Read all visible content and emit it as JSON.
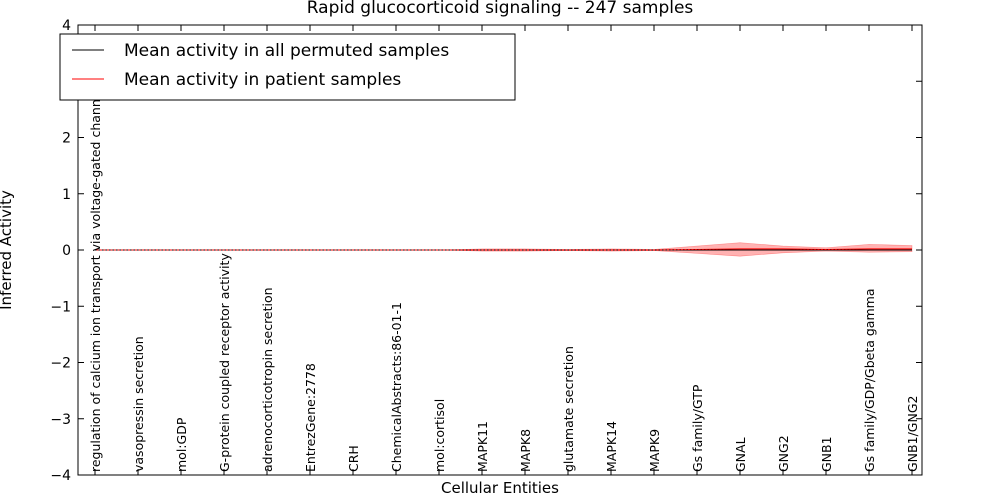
{
  "chart_data": {
    "type": "line",
    "title": "Rapid glucocorticoid signaling -- 247 samples",
    "xlabel": "Cellular Entities",
    "ylabel": "Inferred Activity",
    "ylim": [
      -4,
      4
    ],
    "yticks": [
      4,
      3,
      2,
      1,
      0,
      -1,
      -2,
      -3,
      -4
    ],
    "ytick_labels": [
      "4",
      "3",
      "2",
      "1",
      "0",
      "−1",
      "−2",
      "−3",
      "−4"
    ],
    "categories": [
      "regulation of calcium ion transport via voltage-gated channel",
      "vasopressin secretion",
      "mol:GDP",
      "G-protein coupled receptor activity",
      "adrenocorticotropin secretion",
      "EntrezGene:2778",
      "CRH",
      "ChemicalAbstracts:86-01-1",
      "mol:cortisol",
      "MAPK11",
      "MAPK8",
      "glutamate secretion",
      "MAPK14",
      "MAPK9",
      "Gs family/GTP",
      "GNAL",
      "GNG2",
      "GNB1",
      "Gs family/GDP/Gbeta gamma",
      "GNB1/GNG2"
    ],
    "series": [
      {
        "name": "Mean activity in all permuted samples",
        "color": "#000000",
        "values": [
          0,
          0,
          0,
          0,
          0,
          0,
          0,
          0,
          0,
          0,
          0,
          0,
          0,
          0,
          0,
          0,
          0,
          0,
          0,
          0
        ]
      },
      {
        "name": "Mean activity in patient samples",
        "color": "#ff0000",
        "values": [
          0,
          0,
          0,
          0,
          0,
          0,
          0,
          0,
          0,
          0,
          0,
          0,
          0,
          0,
          0.01,
          0.02,
          0.02,
          0.01,
          0.02,
          0.02
        ]
      }
    ],
    "band": {
      "color": "#ff0000",
      "upper": [
        0,
        0,
        0,
        0,
        0,
        0,
        0,
        0,
        0,
        0.02,
        0.02,
        0.01,
        0.02,
        0.01,
        0.07,
        0.13,
        0.07,
        0.04,
        0.1,
        0.08
      ],
      "lower": [
        0,
        0,
        0,
        0,
        0,
        0,
        0,
        0,
        0,
        -0.02,
        -0.02,
        -0.01,
        -0.02,
        -0.01,
        -0.06,
        -0.11,
        -0.05,
        -0.02,
        -0.04,
        -0.03
      ]
    },
    "legend_position": "top-left",
    "grid": false
  }
}
